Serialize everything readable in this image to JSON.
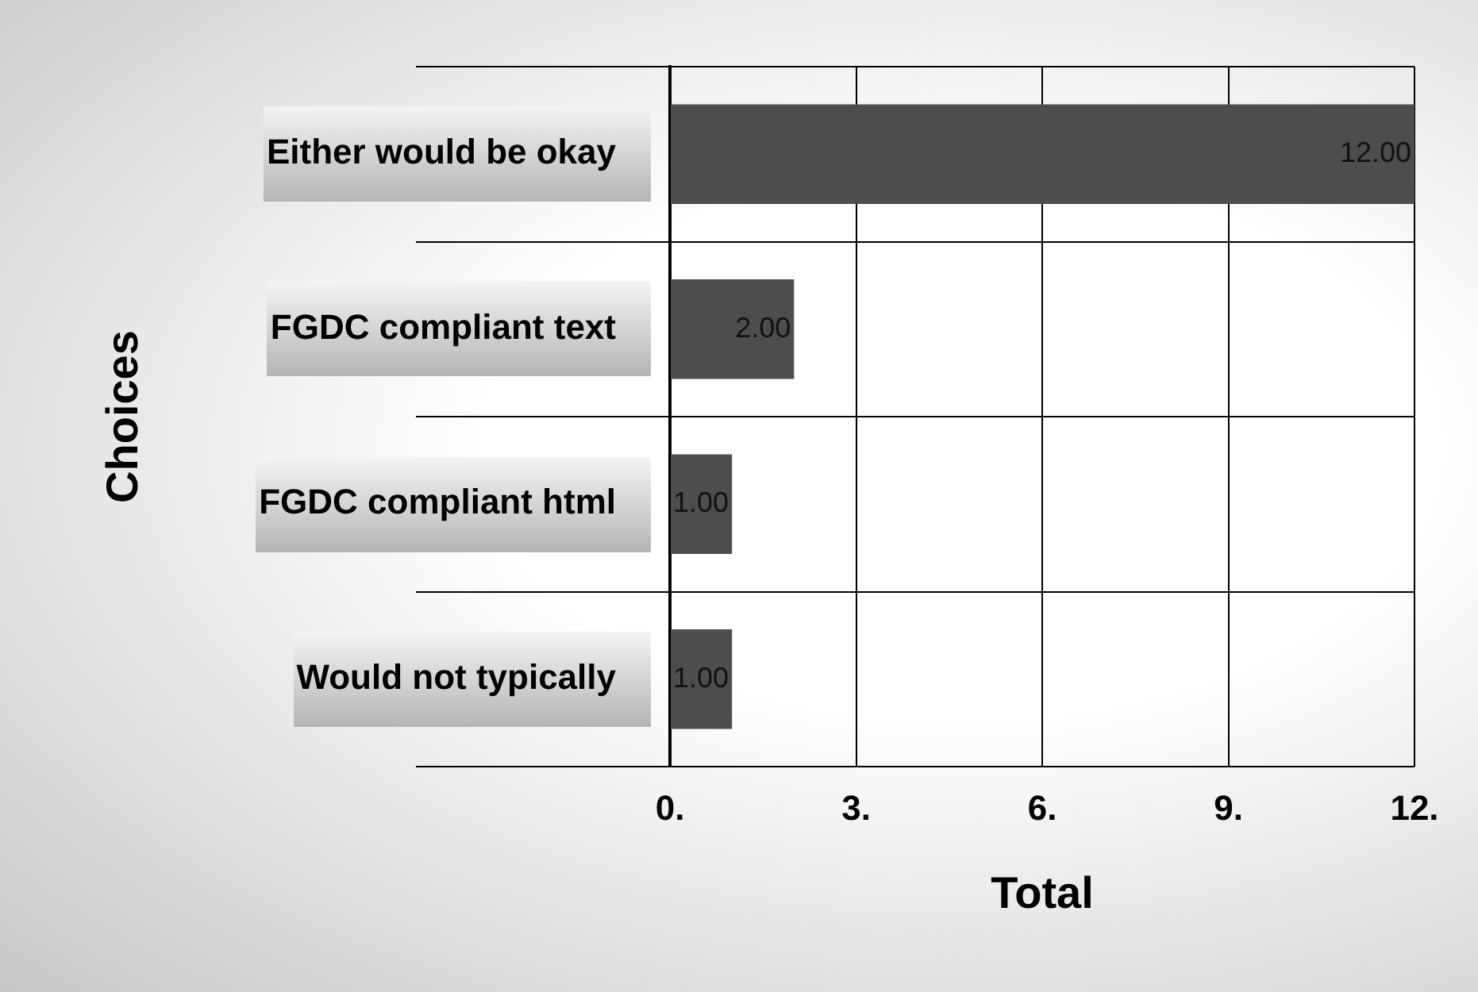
{
  "chart_data": {
    "type": "bar",
    "orientation": "horizontal",
    "xlabel": "Total",
    "ylabel": "Choices",
    "categories": [
      "Either would be okay",
      "FGDC compliant text",
      "FGDC compliant html",
      "Would not typically"
    ],
    "values": [
      12,
      2,
      1,
      1
    ],
    "value_labels": [
      "12.00",
      "2.00",
      "1.00",
      "1.00"
    ],
    "color": "#4d4d4d",
    "xlim": [
      0,
      12
    ],
    "xticks": [
      {
        "value": 0,
        "label": "0."
      },
      {
        "value": 3,
        "label": "3."
      },
      {
        "value": 6,
        "label": "6."
      },
      {
        "value": 9,
        "label": "9."
      },
      {
        "value": 12,
        "label": "12."
      }
    ],
    "grid": true,
    "legend": false
  }
}
